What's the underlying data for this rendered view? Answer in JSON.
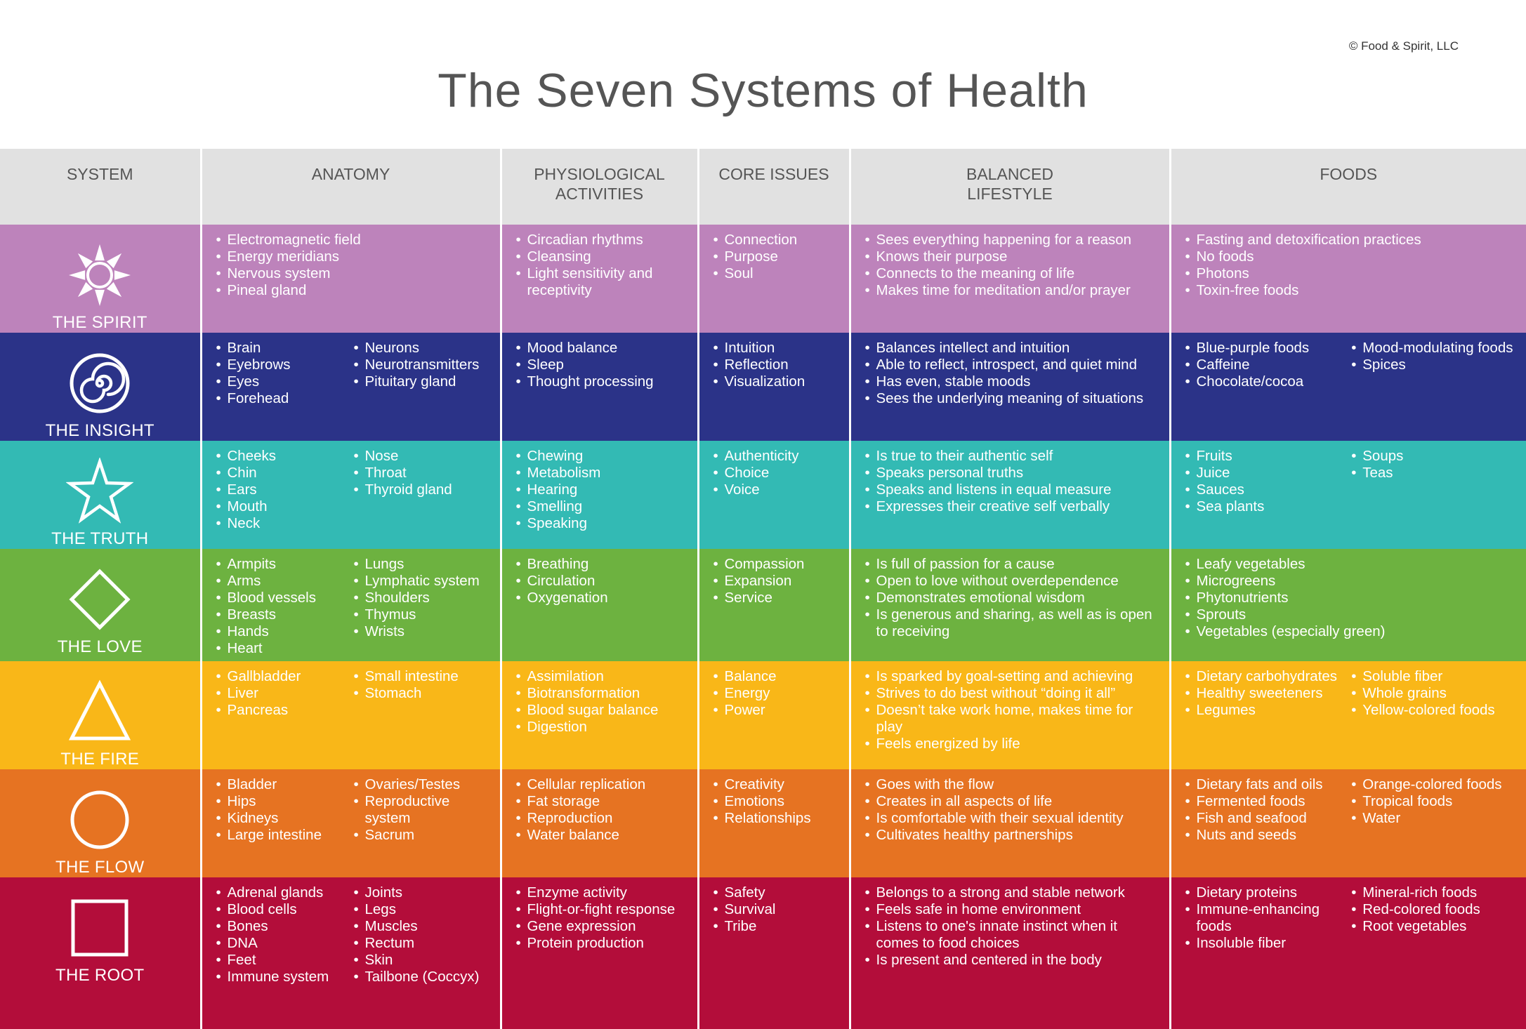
{
  "copyright": "© Food & Spirit, LLC",
  "title": "The Seven Systems of Health",
  "headers": {
    "system": "SYSTEM",
    "anatomy": "ANATOMY",
    "physiological": [
      "PHYSIOLOGICAL",
      "ACTIVITIES"
    ],
    "core": "CORE ISSUES",
    "balanced": [
      "BALANCED",
      "LIFESTYLE"
    ],
    "foods": "FOODS"
  },
  "colors": {
    "spirit": "#bd83bb",
    "insight": "#2b3388",
    "truth": "#33bab4",
    "love": "#6db240",
    "fire": "#f9b718",
    "flow": "#e67322",
    "root": "#b30d3a",
    "header": "#e1e1e1"
  },
  "rows": [
    {
      "name": "THE SPIRIT",
      "icon": "sun-icon",
      "anatomy": [
        [
          "Electromagnetic field",
          "Energy meridians",
          "Nervous system",
          "Pineal gland"
        ],
        []
      ],
      "physiological": [
        "Circadian rhythms",
        "Cleansing",
        "Light sensitivity and receptivity"
      ],
      "core": [
        "Connection",
        "Purpose",
        "Soul"
      ],
      "balanced": [
        "Sees everything happening for a reason",
        "Knows their purpose",
        "Connects to the meaning of life",
        "Makes time for meditation and/or prayer"
      ],
      "foods": [
        [
          "Fasting and detoxification practices",
          "No foods",
          "Photons",
          "Toxin-free foods"
        ],
        []
      ]
    },
    {
      "name": "THE INSIGHT",
      "icon": "spiral-icon",
      "anatomy": [
        [
          "Brain",
          "Eyebrows",
          "Eyes",
          "Forehead"
        ],
        [
          "Neurons",
          "Neurotransmitters",
          "Pituitary gland"
        ]
      ],
      "physiological": [
        "Mood balance",
        "Sleep",
        "Thought processing"
      ],
      "core": [
        "Intuition",
        "Reflection",
        "Visualization"
      ],
      "balanced": [
        "Balances intellect and intuition",
        "Able to reflect, introspect, and quiet mind",
        "Has even, stable moods",
        "Sees the underlying meaning of situations"
      ],
      "foods": [
        [
          "Blue-purple foods",
          "Caffeine",
          "Chocolate/cocoa"
        ],
        [
          "Mood-modulating foods",
          "Spices"
        ]
      ]
    },
    {
      "name": "THE TRUTH",
      "icon": "star-icon",
      "anatomy": [
        [
          "Cheeks",
          "Chin",
          "Ears",
          "Mouth",
          "Neck"
        ],
        [
          "Nose",
          "Throat",
          "Thyroid gland"
        ]
      ],
      "physiological": [
        "Chewing",
        "Metabolism",
        "Hearing",
        "Smelling",
        "Speaking"
      ],
      "core": [
        "Authenticity",
        "Choice",
        "Voice"
      ],
      "balanced": [
        "Is true to their authentic self",
        "Speaks personal truths",
        "Speaks and listens in equal measure",
        "Expresses their creative self verbally"
      ],
      "foods": [
        [
          "Fruits",
          "Juice",
          "Sauces",
          "Sea plants"
        ],
        [
          "Soups",
          "Teas"
        ]
      ]
    },
    {
      "name": "THE LOVE",
      "icon": "diamond-icon",
      "anatomy": [
        [
          "Armpits",
          "Arms",
          "Blood vessels",
          "Breasts",
          "Hands",
          "Heart"
        ],
        [
          "Lungs",
          "Lymphatic system",
          "Shoulders",
          "Thymus",
          "Wrists"
        ]
      ],
      "physiological": [
        "Breathing",
        "Circulation",
        "Oxygenation"
      ],
      "core": [
        "Compassion",
        "Expansion",
        "Service"
      ],
      "balanced": [
        "Is full of passion for a cause",
        "Open to love without overdependence",
        "Demonstrates emotional wisdom",
        "Is generous and sharing, as well as is open to receiving"
      ],
      "foods": [
        [
          "Leafy vegetables",
          "Microgreens",
          "Phytonutrients",
          "Sprouts",
          "Vegetables (especially green)"
        ],
        []
      ]
    },
    {
      "name": "THE FIRE",
      "icon": "triangle-icon",
      "anatomy": [
        [
          "Gallbladder",
          "Liver",
          "Pancreas"
        ],
        [
          "Small intestine",
          "Stomach"
        ]
      ],
      "physiological": [
        "Assimilation",
        "Biotransformation",
        "Blood sugar balance",
        "Digestion"
      ],
      "core": [
        "Balance",
        "Energy",
        "Power"
      ],
      "balanced": [
        "Is sparked by goal-setting and achieving",
        "Strives to do best without “doing it all”",
        "Doesn’t take work home, makes time for play",
        "Feels energized by life"
      ],
      "foods": [
        [
          "Dietary carbohydrates",
          "Healthy sweeteners",
          "Legumes"
        ],
        [
          "Soluble fiber",
          "Whole grains",
          "Yellow-colored foods"
        ]
      ]
    },
    {
      "name": "THE FLOW",
      "icon": "circle-icon",
      "anatomy": [
        [
          "Bladder",
          "Hips",
          "Kidneys",
          "Large intestine"
        ],
        [
          "Ovaries/Testes",
          "Reproductive system",
          "Sacrum"
        ]
      ],
      "physiological": [
        "Cellular replication",
        "Fat storage",
        "Reproduction",
        "Water balance"
      ],
      "core": [
        "Creativity",
        "Emotions",
        "Relationships"
      ],
      "balanced": [
        "Goes with the flow",
        "Creates in all aspects of life",
        "Is comfortable with their sexual identity",
        "Cultivates healthy partnerships"
      ],
      "foods": [
        [
          "Dietary fats and oils",
          "Fermented foods",
          "Fish and seafood",
          "Nuts and seeds"
        ],
        [
          "Orange-colored foods",
          "Tropical foods",
          "Water"
        ]
      ]
    },
    {
      "name": "THE ROOT",
      "icon": "square-icon",
      "anatomy": [
        [
          "Adrenal glands",
          "Blood cells",
          "Bones",
          "DNA",
          "Feet",
          "Immune system"
        ],
        [
          "Joints",
          "Legs",
          "Muscles",
          "Rectum",
          "Skin",
          "Tailbone (Coccyx)"
        ]
      ],
      "physiological": [
        "Enzyme activity",
        "Flight-or-fight response",
        "Gene expression",
        "Protein production"
      ],
      "core": [
        "Safety",
        "Survival",
        "Tribe"
      ],
      "balanced": [
        "Belongs to a strong and stable network",
        "Feels safe in home environment",
        "Listens to one's innate instinct when it comes to food choices",
        "Is present and centered in the body"
      ],
      "foods": [
        [
          "Dietary proteins",
          "Immune-enhancing foods",
          "Insoluble fiber"
        ],
        [
          "Mineral-rich foods",
          "Red-colored foods",
          "Root vegetables"
        ]
      ]
    }
  ]
}
